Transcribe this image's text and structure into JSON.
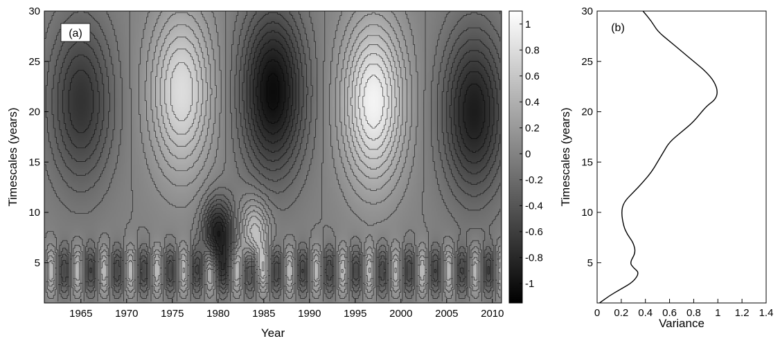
{
  "chart_data": [
    {
      "type": "heatmap",
      "panel_label": "(a)",
      "xlabel": "Year",
      "ylabel": "Timescales (years)",
      "xlim": [
        1961,
        2011
      ],
      "ylim": [
        1,
        30
      ],
      "xticks": [
        1965,
        1970,
        1975,
        1980,
        1985,
        1990,
        1995,
        2000,
        2005,
        2010
      ],
      "yticks": [
        5,
        10,
        15,
        20,
        25,
        30
      ],
      "colorbar": {
        "range": [
          -1.15,
          1.1
        ],
        "ticks": [
          1,
          0.8,
          0.6,
          0.4,
          0.2,
          0,
          -0.2,
          -0.4,
          -0.6,
          -0.8,
          -1
        ],
        "colormap": "gray",
        "low_color": "#000000",
        "high_color": "#ffffff"
      },
      "contour_lines": true,
      "long_period_extrema": [
        {
          "year": 1965,
          "timescale": 21,
          "value": -0.7
        },
        {
          "year": 1976,
          "timescale": 22,
          "value": 0.8
        },
        {
          "year": 1986,
          "timescale": 22,
          "value": -1.05
        },
        {
          "year": 1997,
          "timescale": 21,
          "value": 1.0
        },
        {
          "year": 2008,
          "timescale": 20,
          "value": -0.9
        }
      ],
      "mid_period_extrema": [
        {
          "year": 1980,
          "timescale": 8,
          "value": -0.9
        },
        {
          "year": 1984,
          "timescale": 8,
          "value": 0.6
        }
      ]
    },
    {
      "type": "line",
      "panel_label": "(b)",
      "xlabel": "Variance",
      "ylabel": "Timescales (years)",
      "xlim": [
        0,
        1.4
      ],
      "ylim": [
        1,
        30
      ],
      "xticks": [
        0,
        0.2,
        0.4,
        0.6,
        0.8,
        1,
        1.2,
        1.4
      ],
      "yticks": [
        5,
        10,
        15,
        20,
        25,
        30
      ],
      "x": [
        0.02,
        0.1,
        0.2,
        0.3,
        0.35,
        0.3,
        0.27,
        0.32,
        0.3,
        0.25,
        0.22,
        0.2,
        0.22,
        0.3,
        0.38,
        0.45,
        0.5,
        0.55,
        0.6,
        0.7,
        0.8,
        0.9,
        0.98,
        1.0,
        0.97,
        0.9,
        0.8,
        0.7,
        0.6,
        0.5,
        0.45,
        0.38
      ],
      "y": [
        1,
        1.7,
        2.4,
        3.1,
        4,
        4.5,
        5,
        6,
        7,
        7.8,
        8.6,
        10,
        11,
        12,
        13,
        14,
        15,
        16,
        17,
        18,
        19,
        20.5,
        21.2,
        22,
        23,
        24,
        25,
        26,
        27,
        28,
        29,
        30
      ]
    }
  ]
}
